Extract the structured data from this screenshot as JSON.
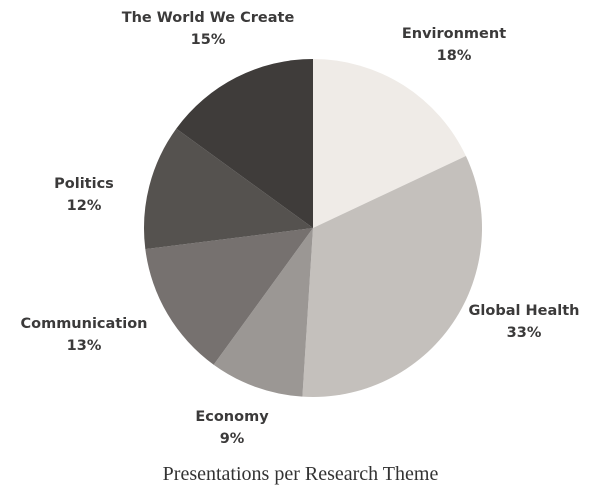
{
  "chart_data": {
    "type": "pie",
    "title": "Presentations per Research Theme",
    "slices": [
      {
        "label": "Environment",
        "percent_label": "18%",
        "value": 18,
        "color": "#efebe7"
      },
      {
        "label": "Global Health",
        "percent_label": "33%",
        "value": 33,
        "color": "#c4c0bc"
      },
      {
        "label": "Economy",
        "percent_label": "9%",
        "value": 9,
        "color": "#9b9794"
      },
      {
        "label": "Communication",
        "percent_label": "13%",
        "value": 13,
        "color": "#76716f"
      },
      {
        "label": "Politics",
        "percent_label": "12%",
        "value": 12,
        "color": "#55524f"
      },
      {
        "label": "The World We Create",
        "percent_label": "15%",
        "value": 15,
        "color": "#3f3c3a"
      }
    ],
    "start_angle_deg": 0,
    "direction": "clockwise",
    "legend": "none"
  }
}
